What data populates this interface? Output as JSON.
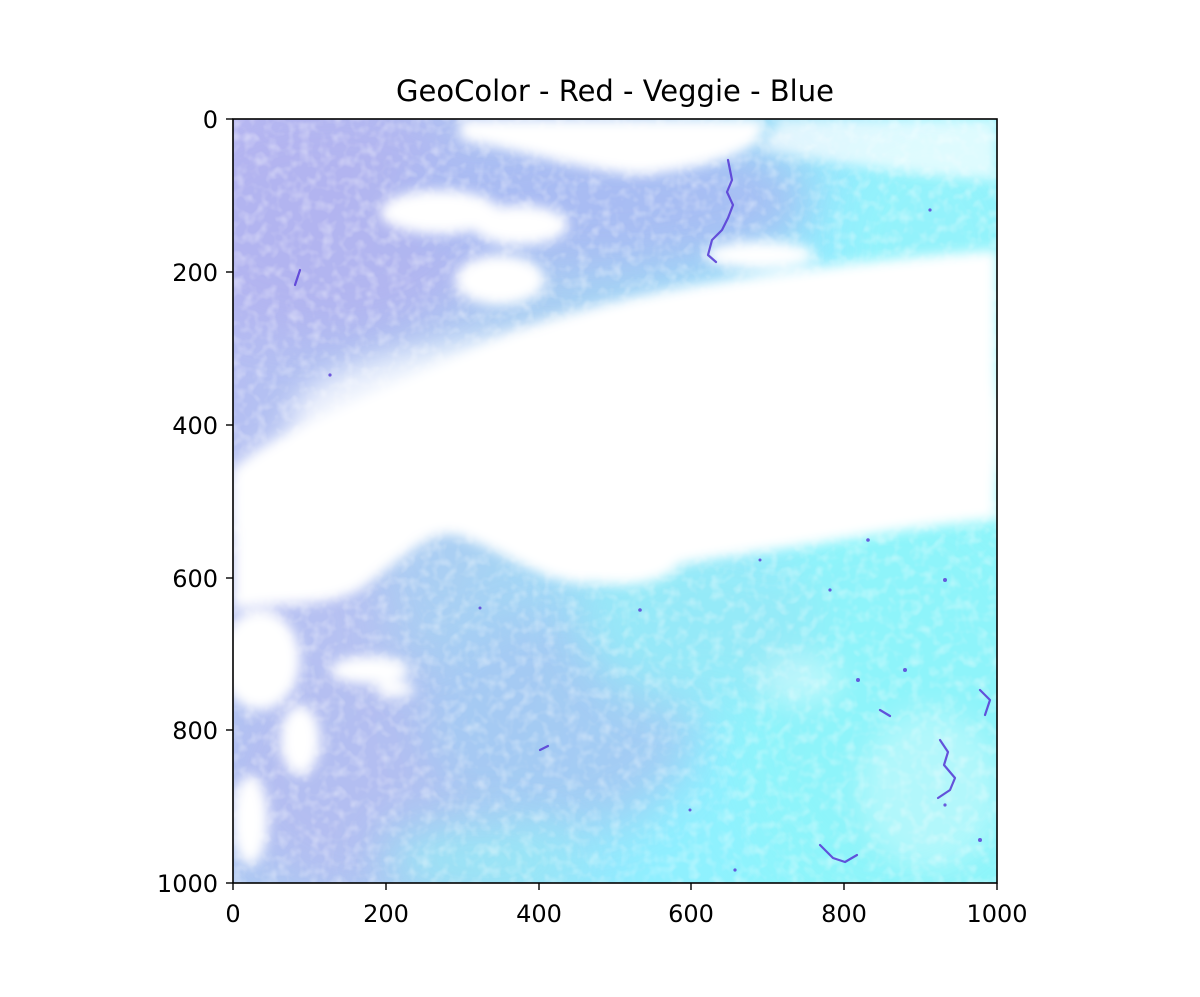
{
  "figure": {
    "title": "GeoColor - Red - Veggie - Blue",
    "x_ticks": [
      "0",
      "200",
      "400",
      "600",
      "800",
      "1000"
    ],
    "y_ticks": [
      "0",
      "200",
      "400",
      "600",
      "800",
      "1000"
    ],
    "x_range": [
      0,
      1000
    ],
    "y_range": [
      0,
      1000
    ],
    "y_inverted": true,
    "image_description_colors": {
      "cloud": "#ffffff",
      "land_cyan": "#8cf2f7",
      "land_lavender": "#b4bcf2",
      "water": "#5a3fd6"
    }
  }
}
